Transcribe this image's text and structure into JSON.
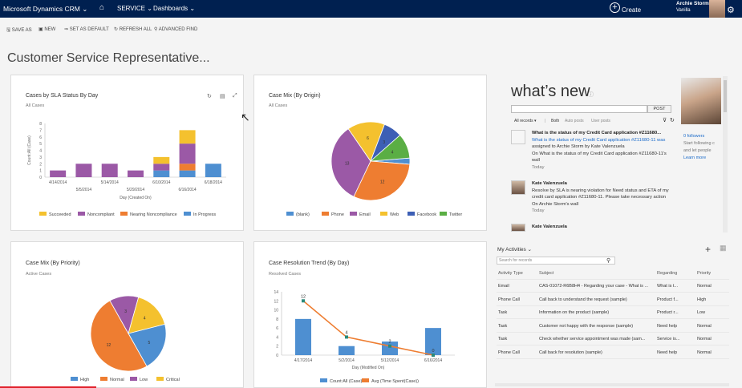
{
  "topbar": {
    "app_name": "Microsoft Dynamics CRM ⌄",
    "area": "SERVICE ⌄",
    "section": "Dashboards ⌄",
    "create": "Create",
    "user_name": "Archie Storm",
    "user_org": "Vanilla"
  },
  "commands": [
    "SAVE AS",
    "NEW",
    "SET AS DEFAULT",
    "REFRESH ALL",
    "ADVANCED FIND"
  ],
  "dashboard_title": "Customer Service Representative...",
  "chart_data": [
    {
      "type": "bar",
      "title": "Cases by SLA Status By Day",
      "subtitle": "All Cases",
      "ylabel": "Count:All (Case)",
      "xlabel": "Day (Created On)",
      "categories": [
        "4/14/2014",
        "5/5/2014",
        "5/14/2014",
        "5/29/2014",
        "6/10/2014",
        "6/16/2014",
        "6/18/2014"
      ],
      "ylim": [
        0,
        8
      ],
      "yticks": [
        "0",
        "1",
        "2",
        "3",
        "4",
        "5",
        "6",
        "7",
        "8"
      ],
      "series": [
        {
          "name": "Succeeded",
          "color": "#f4c12e",
          "values": [
            0,
            0,
            0,
            0,
            1,
            0,
            0
          ]
        },
        {
          "name": "Noncompliant",
          "color": "#9b59a6",
          "values": [
            1,
            2,
            2,
            1,
            1,
            3,
            0
          ]
        },
        {
          "name": "Nearing Noncompliance",
          "color": "#ee7d31",
          "values": [
            0,
            0,
            0,
            0,
            0,
            1,
            0
          ]
        },
        {
          "name": "In Progress",
          "color": "#4e8fd1",
          "values": [
            0,
            0,
            0,
            0,
            1,
            1,
            2
          ]
        }
      ],
      "extra_top": [
        0,
        0,
        0,
        0,
        0,
        2,
        0
      ],
      "legend": "bottom"
    },
    {
      "type": "pie",
      "title": "Case Mix (By Origin)",
      "subtitle": "All Cases",
      "categories": [
        "(blank)",
        "Phone",
        "Email",
        "Web",
        "Facebook",
        "Twitter"
      ],
      "colors": [
        "#4e8fd1",
        "#ee7d31",
        "#9b59a6",
        "#f4c12e",
        "#3d5fb5",
        "#5aae44"
      ],
      "values": [
        1,
        12,
        13,
        6,
        3,
        4
      ],
      "data_labels": [
        "",
        "12",
        "13",
        "6",
        "3",
        "4"
      ],
      "legend": "bottom"
    },
    {
      "type": "pie",
      "title": "Case Mix (By Priority)",
      "subtitle": "Active Cases",
      "categories": [
        "High",
        "Normal",
        "Low",
        "Critical"
      ],
      "colors": [
        "#4e8fd1",
        "#ee7d31",
        "#9b59a6",
        "#f4c12e"
      ],
      "values": [
        5,
        12,
        3,
        4
      ],
      "data_labels": [
        "5",
        "12",
        "3",
        "4"
      ],
      "legend": "bottom"
    },
    {
      "type": "bar",
      "title": "Case Resolution Trend (By Day)",
      "subtitle": "Resolved Cases",
      "xlabel": "Day (Modified On)",
      "categories": [
        "4/17/2014",
        "5/2/2014",
        "5/12/2014",
        "6/16/2014"
      ],
      "ylim": [
        0,
        14
      ],
      "yticks": [
        "0",
        "2",
        "4",
        "6",
        "8",
        "10",
        "12",
        "14"
      ],
      "series": [
        {
          "name": "Count:All (Case)",
          "color": "#4e8fd1",
          "values": [
            8,
            2,
            3,
            6
          ]
        },
        {
          "name": "Avg (Time Spent(Case))",
          "color": "#ee7d31",
          "values": [
            12,
            4,
            2,
            0
          ],
          "line": true
        }
      ],
      "line_labels": [
        "12",
        "4",
        "2",
        "0"
      ],
      "legend": "bottom"
    }
  ],
  "whats_new": {
    "title": "what’s new",
    "info": "ⓘ",
    "post_button": "POST",
    "filters": [
      "All records ▾",
      "|",
      "Both",
      "Auto posts",
      "User posts"
    ],
    "posts": [
      {
        "line1": "What is the status of my Credit Card application #Z11680...",
        "line2": "What is the status of my Credit Card application #Z11680-11 was",
        "line3": "assigned to Archie Storm by Kate Valenzuela",
        "line4": "On What is the status of my Credit Card application #Z11680-11's",
        "line5": "wall",
        "line6": "Today"
      },
      {
        "line1": "Kate Valenzuela",
        "line2": "Resolve by SLA is nearing violation for Need status and ETA of my",
        "line3": "credit card application #Z11680-11. Please take necessary action",
        "line4": "On Archie Storm's wall",
        "line5": "Today"
      },
      {
        "line1": "Kate Valenzuela"
      }
    ],
    "followers": "0 followers",
    "side_text_1": "Start following c",
    "side_text_2": "and let people",
    "learn_more": "Learn more"
  },
  "activities": {
    "title": "My Activities ⌄",
    "search_placeholder": "Search for records",
    "columns": [
      "Activity Type",
      "Subject",
      "Regarding",
      "Priority"
    ],
    "rows": [
      [
        "Email",
        "CAS-01072-R6B8H4 - Regarding your case - What is ...",
        "What is t...",
        "Normal"
      ],
      [
        "Phone Call",
        "Call back to understand the request (sample)",
        "Product f...",
        "High"
      ],
      [
        "Task",
        "Information on the product (sample)",
        "Product r...",
        "Low"
      ],
      [
        "Task",
        "Customer not happy with the response (sample)",
        "Need help",
        "Normal"
      ],
      [
        "Task",
        "Check whether service appointment was made (sam...",
        "Service is...",
        "Normal"
      ],
      [
        "Phone Call",
        "Call back for resolution (sample)",
        "Need help",
        "Normal"
      ]
    ]
  }
}
